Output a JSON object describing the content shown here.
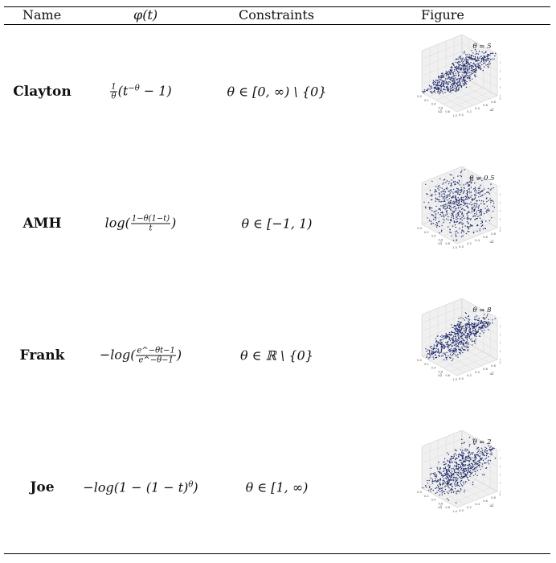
{
  "header": {
    "name": "Name",
    "phi": "φ(t)",
    "constraints": "Constraints",
    "figure": "Figure"
  },
  "rows": [
    {
      "name": "Clayton",
      "phi": {
        "lead": "",
        "frac_num": "1",
        "frac_den": "θ",
        "body": "(t",
        "sup": "−θ",
        "tail": " − 1)"
      },
      "constraint": "θ ∈ [0, ∞) \\ {0}",
      "figure_title": "θ = 5",
      "dist": "clayton"
    },
    {
      "name": "AMH",
      "phi": {
        "lead": "log(",
        "frac_num": "1−θ(1−t)",
        "frac_den": "t",
        "body": "",
        "sup": "",
        "tail": ")"
      },
      "constraint": "θ ∈ [−1, 1)",
      "figure_title": "θ = 0.5",
      "dist": "amh"
    },
    {
      "name": "Frank",
      "phi": {
        "lead": "−log(",
        "frac_num": "e^−θt−1",
        "frac_den": "e^−θ−1",
        "body": "",
        "sup": "",
        "tail": ")"
      },
      "constraint": "θ ∈ ℝ \\ {0}",
      "figure_title": "θ = 8",
      "dist": "frank"
    },
    {
      "name": "Joe",
      "phi": {
        "lead": "−log(1 − (1 − t)",
        "frac_num": "",
        "frac_den": "",
        "body": "",
        "sup": "θ",
        "tail": ")"
      },
      "constraint": "θ ∈ [1, ∞)",
      "figure_title": "θ = 2",
      "dist": "joe"
    }
  ],
  "axis_ticks": [
    "0.0",
    "0.2",
    "0.4",
    "0.6",
    "0.8",
    "1.0"
  ],
  "axis_labels": {
    "x": "u1",
    "y": "u2",
    "z": "z"
  },
  "colors": {
    "point": "#1f2a6b",
    "pane": "#f0f0f0",
    "grid": "#d6d6d6"
  }
}
